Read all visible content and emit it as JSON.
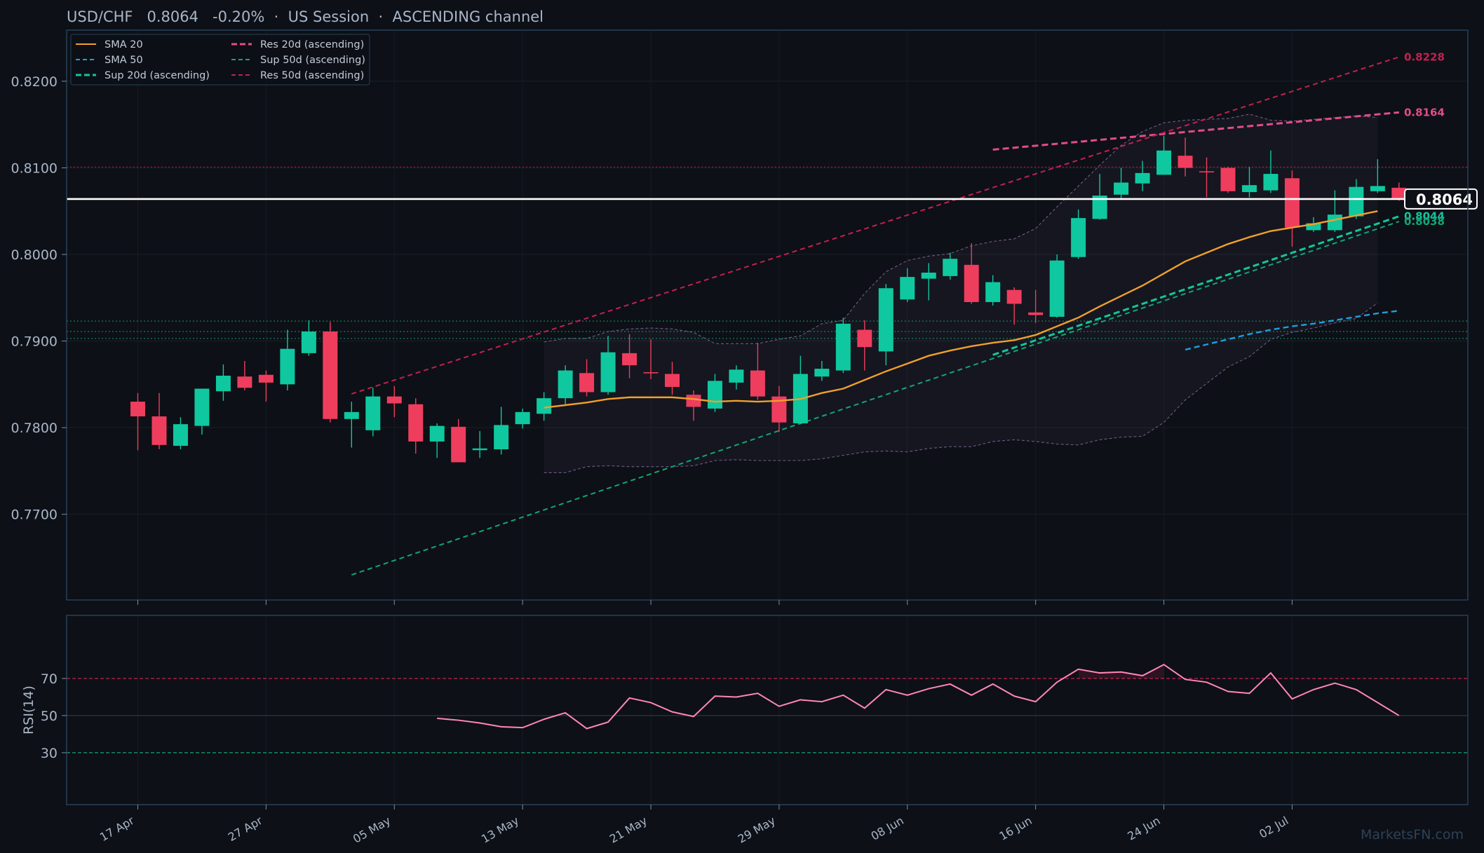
{
  "header": {
    "title": "USD/CHF   0.8064   -0.20%  ·  US Session  ·  ASCENDING channel"
  },
  "watermark": "MarketsFN.com",
  "colors": {
    "background": "#0d1016",
    "frame": "#26405a",
    "up": "#0fc8a0",
    "down": "#ef3d5e",
    "sma20": "#f0a02c",
    "sma50": "#1e9fe0",
    "sup20": "#11c79b",
    "sup50": "#14a574",
    "res20": "#e24c8a",
    "res50": "#c22151",
    "rsi": "#ff86b8",
    "last_price": "#ffffff"
  },
  "chart_data": [
    {
      "type": "candlestick",
      "title": "USD/CHF   0.8064   -0.20%  ·  US Session  ·  ASCENDING channel",
      "x_ticks": [
        "17 Apr",
        "27 Apr",
        "05 May",
        "13 May",
        "21 May",
        "29 May",
        "08 Jun",
        "16 Jun",
        "24 Jun",
        "02 Jul"
      ],
      "y_ticks": [
        "0.7700",
        "0.7800",
        "0.7900",
        "0.8000",
        "0.8100",
        "0.8200"
      ],
      "ylim": [
        0.7601,
        0.8259
      ],
      "grid": true,
      "legend": {
        "position": "top-left",
        "entries": [
          {
            "label": "SMA 20",
            "key": "sma20",
            "style": "solid"
          },
          {
            "label": "SMA 50",
            "key": "sma50",
            "style": "dashed"
          },
          {
            "label": "Sup 20d (ascending)",
            "key": "sup20",
            "style": "dashed-bold"
          },
          {
            "label": "Res 20d (ascending)",
            "key": "res20",
            "style": "dashed-bold"
          },
          {
            "label": "Sup 50d (ascending)",
            "key": "sup50",
            "style": "dashed"
          },
          {
            "label": "Res 50d (ascending)",
            "key": "res50",
            "style": "dashed"
          }
        ]
      },
      "candles": [
        {
          "o": 0.783,
          "h": 0.784,
          "l": 0.7774,
          "c": 0.7813
        },
        {
          "o": 0.7813,
          "h": 0.784,
          "l": 0.7775,
          "c": 0.778
        },
        {
          "o": 0.7779,
          "h": 0.7812,
          "l": 0.7775,
          "c": 0.7804
        },
        {
          "o": 0.7802,
          "h": 0.7845,
          "l": 0.7792,
          "c": 0.7845
        },
        {
          "o": 0.7842,
          "h": 0.7873,
          "l": 0.7831,
          "c": 0.786
        },
        {
          "o": 0.7859,
          "h": 0.7877,
          "l": 0.7843,
          "c": 0.7846
        },
        {
          "o": 0.7861,
          "h": 0.7866,
          "l": 0.783,
          "c": 0.7852
        },
        {
          "o": 0.785,
          "h": 0.7913,
          "l": 0.7843,
          "c": 0.7891
        },
        {
          "o": 0.7886,
          "h": 0.7924,
          "l": 0.7883,
          "c": 0.7911
        },
        {
          "o": 0.7911,
          "h": 0.7922,
          "l": 0.7806,
          "c": 0.781
        },
        {
          "o": 0.781,
          "h": 0.783,
          "l": 0.7777,
          "c": 0.7818
        },
        {
          "o": 0.7797,
          "h": 0.7846,
          "l": 0.779,
          "c": 0.7836
        },
        {
          "o": 0.7836,
          "h": 0.7848,
          "l": 0.7812,
          "c": 0.7828
        },
        {
          "o": 0.7827,
          "h": 0.7834,
          "l": 0.777,
          "c": 0.7784
        },
        {
          "o": 0.7784,
          "h": 0.7805,
          "l": 0.7765,
          "c": 0.7802
        },
        {
          "o": 0.7801,
          "h": 0.781,
          "l": 0.776,
          "c": 0.776
        },
        {
          "o": 0.7774,
          "h": 0.7796,
          "l": 0.7765,
          "c": 0.7776
        },
        {
          "o": 0.7775,
          "h": 0.7824,
          "l": 0.7769,
          "c": 0.7803
        },
        {
          "o": 0.7804,
          "h": 0.7822,
          "l": 0.7799,
          "c": 0.7818
        },
        {
          "o": 0.7816,
          "h": 0.7841,
          "l": 0.7808,
          "c": 0.7834
        },
        {
          "o": 0.7834,
          "h": 0.7872,
          "l": 0.7827,
          "c": 0.7866
        },
        {
          "o": 0.7863,
          "h": 0.7879,
          "l": 0.7836,
          "c": 0.7841
        },
        {
          "o": 0.7841,
          "h": 0.7906,
          "l": 0.7838,
          "c": 0.7887
        },
        {
          "o": 0.7886,
          "h": 0.7908,
          "l": 0.7857,
          "c": 0.7872
        },
        {
          "o": 0.7864,
          "h": 0.7902,
          "l": 0.7856,
          "c": 0.7863
        },
        {
          "o": 0.7862,
          "h": 0.7876,
          "l": 0.7838,
          "c": 0.7847
        },
        {
          "o": 0.7838,
          "h": 0.7843,
          "l": 0.7808,
          "c": 0.7824
        },
        {
          "o": 0.7822,
          "h": 0.7862,
          "l": 0.7818,
          "c": 0.7854
        },
        {
          "o": 0.7852,
          "h": 0.7872,
          "l": 0.7844,
          "c": 0.7867
        },
        {
          "o": 0.7866,
          "h": 0.7898,
          "l": 0.7832,
          "c": 0.7836
        },
        {
          "o": 0.7836,
          "h": 0.7848,
          "l": 0.7795,
          "c": 0.7806
        },
        {
          "o": 0.7805,
          "h": 0.7883,
          "l": 0.7804,
          "c": 0.7862
        },
        {
          "o": 0.7859,
          "h": 0.7877,
          "l": 0.7854,
          "c": 0.7868
        },
        {
          "o": 0.7866,
          "h": 0.7927,
          "l": 0.7863,
          "c": 0.792
        },
        {
          "o": 0.7913,
          "h": 0.7924,
          "l": 0.7866,
          "c": 0.7893
        },
        {
          "o": 0.7888,
          "h": 0.7966,
          "l": 0.7872,
          "c": 0.7961
        },
        {
          "o": 0.7948,
          "h": 0.7984,
          "l": 0.7945,
          "c": 0.7974
        },
        {
          "o": 0.7972,
          "h": 0.799,
          "l": 0.7947,
          "c": 0.7979
        },
        {
          "o": 0.7975,
          "h": 0.8002,
          "l": 0.7971,
          "c": 0.7995
        },
        {
          "o": 0.7988,
          "h": 0.8013,
          "l": 0.7943,
          "c": 0.7945
        },
        {
          "o": 0.7945,
          "h": 0.7976,
          "l": 0.7941,
          "c": 0.7968
        },
        {
          "o": 0.7959,
          "h": 0.7962,
          "l": 0.7919,
          "c": 0.7943
        },
        {
          "o": 0.7933,
          "h": 0.7959,
          "l": 0.7921,
          "c": 0.793
        },
        {
          "o": 0.7928,
          "h": 0.8,
          "l": 0.7927,
          "c": 0.7993
        },
        {
          "o": 0.7997,
          "h": 0.8052,
          "l": 0.7995,
          "c": 0.8042
        },
        {
          "o": 0.8041,
          "h": 0.8093,
          "l": 0.804,
          "c": 0.8068
        },
        {
          "o": 0.8069,
          "h": 0.81,
          "l": 0.8065,
          "c": 0.8083
        },
        {
          "o": 0.8082,
          "h": 0.8108,
          "l": 0.8073,
          "c": 0.8094
        },
        {
          "o": 0.8092,
          "h": 0.8137,
          "l": 0.8092,
          "c": 0.812
        },
        {
          "o": 0.8114,
          "h": 0.8135,
          "l": 0.809,
          "c": 0.81
        },
        {
          "o": 0.8096,
          "h": 0.8112,
          "l": 0.8066,
          "c": 0.8095
        },
        {
          "o": 0.81,
          "h": 0.8101,
          "l": 0.8071,
          "c": 0.8073
        },
        {
          "o": 0.8072,
          "h": 0.8101,
          "l": 0.8066,
          "c": 0.808
        },
        {
          "o": 0.8074,
          "h": 0.812,
          "l": 0.8071,
          "c": 0.8093
        },
        {
          "o": 0.8088,
          "h": 0.8097,
          "l": 0.8009,
          "c": 0.8031
        },
        {
          "o": 0.8028,
          "h": 0.8043,
          "l": 0.8026,
          "c": 0.8036
        },
        {
          "o": 0.8028,
          "h": 0.8074,
          "l": 0.8026,
          "c": 0.8046
        },
        {
          "o": 0.8044,
          "h": 0.8087,
          "l": 0.8041,
          "c": 0.8078
        },
        {
          "o": 0.8073,
          "h": 0.811,
          "l": 0.8071,
          "c": 0.8079
        },
        {
          "o": 0.8077,
          "h": 0.8083,
          "l": 0.8062,
          "c": 0.8064
        }
      ],
      "series": [
        {
          "key": "sma20",
          "label": "SMA 20",
          "start_index": 19,
          "values": [
            0.7823,
            0.7826,
            0.7829,
            0.7833,
            0.7835,
            0.7835,
            0.7835,
            0.7833,
            0.783,
            0.7831,
            0.783,
            0.7831,
            0.7833,
            0.784,
            0.7845,
            0.7855,
            0.7865,
            0.7874,
            0.7883,
            0.7889,
            0.7894,
            0.7898,
            0.7901,
            0.7907,
            0.7917,
            0.7927,
            0.794,
            0.7952,
            0.7964,
            0.7978,
            0.7992,
            0.8002,
            0.8012,
            0.802,
            0.8027,
            0.8031,
            0.8035,
            0.804,
            0.8045,
            0.805
          ]
        },
        {
          "key": "sma50",
          "label": "SMA 50",
          "start_index": 49,
          "values": [
            0.789,
            0.7896,
            0.7902,
            0.7908,
            0.7913,
            0.7917,
            0.792,
            0.7924,
            0.7928,
            0.7932,
            0.7935
          ]
        },
        {
          "key": "sup20",
          "label": "Sup 20d (ascending)",
          "from": {
            "i": 40,
            "v": 0.7884
          },
          "to": {
            "i": 59,
            "v": 0.8044
          }
        },
        {
          "key": "res20",
          "label": "Res 20d (ascending)",
          "from": {
            "i": 40,
            "v": 0.8121
          },
          "to": {
            "i": 59,
            "v": 0.8164
          }
        },
        {
          "key": "sup50",
          "label": "Sup 50d (ascending)",
          "from": {
            "i": 10,
            "v": 0.763
          },
          "to": {
            "i": 59,
            "v": 0.8038
          }
        },
        {
          "key": "res50",
          "label": "Res 50d (ascending)",
          "from": {
            "i": 10,
            "v": 0.7839
          },
          "to": {
            "i": 59,
            "v": 0.8228
          }
        }
      ],
      "bollinger": {
        "start_index": 19,
        "upper": [
          0.7899,
          0.7903,
          0.7903,
          0.7911,
          0.7914,
          0.7915,
          0.7914,
          0.791,
          0.7897,
          0.7897,
          0.7897,
          0.7902,
          0.7906,
          0.792,
          0.7924,
          0.7955,
          0.798,
          0.7993,
          0.7998,
          0.8001,
          0.801,
          0.8015,
          0.8018,
          0.803,
          0.8055,
          0.8079,
          0.8103,
          0.8126,
          0.8142,
          0.8152,
          0.8155,
          0.8156,
          0.8157,
          0.8162,
          0.8155,
          0.8154,
          0.8156,
          0.8158,
          0.816,
          0.8158
        ],
        "lower": [
          0.7748,
          0.7748,
          0.7755,
          0.7756,
          0.7755,
          0.7755,
          0.7755,
          0.7756,
          0.7762,
          0.7763,
          0.7762,
          0.7762,
          0.7762,
          0.7764,
          0.7768,
          0.7772,
          0.7773,
          0.7772,
          0.7776,
          0.7778,
          0.7778,
          0.7784,
          0.7786,
          0.7784,
          0.7781,
          0.778,
          0.7786,
          0.7789,
          0.779,
          0.7806,
          0.7832,
          0.7851,
          0.787,
          0.7882,
          0.7902,
          0.791,
          0.7915,
          0.7921,
          0.7926,
          0.7944
        ]
      },
      "horizontal_levels": [
        {
          "value": 0.8101,
          "color": "#c22151",
          "style": "dotted"
        },
        {
          "value": 0.7923,
          "color": "#14a574",
          "style": "dotted"
        },
        {
          "value": 0.7911,
          "color": "#14a574",
          "style": "dotted"
        },
        {
          "value": 0.7903,
          "color": "#14a574",
          "style": "dotted"
        }
      ],
      "last_price": {
        "value": 0.8064,
        "label": "0.8064"
      },
      "level_labels": [
        {
          "value": 0.8228,
          "label": "0.8228",
          "key": "res50"
        },
        {
          "value": 0.8164,
          "label": "0.8164",
          "key": "res20"
        },
        {
          "value": 0.8044,
          "label": "0.8044",
          "key": "sup20"
        },
        {
          "value": 0.8038,
          "label": "0.8038",
          "key": "sup50"
        }
      ]
    },
    {
      "type": "line",
      "ylabel": "RSI(14)",
      "y_ticks": [
        "30",
        "50",
        "70"
      ],
      "ylim": [
        2,
        104
      ],
      "reference_lines": [
        {
          "value": 70,
          "color": "#c22151",
          "style": "dashed"
        },
        {
          "value": 50,
          "color": "#2a3442",
          "style": "solid"
        },
        {
          "value": 30,
          "color": "#14a574",
          "style": "dashed"
        }
      ],
      "series": [
        {
          "name": "RSI(14)",
          "start_index": 14,
          "values": [
            48.5,
            47.5,
            46.0,
            44.0,
            43.5,
            48.0,
            51.5,
            43.0,
            46.5,
            59.5,
            57.0,
            52.0,
            49.5,
            60.5,
            60.0,
            62.0,
            55.0,
            58.5,
            57.5,
            61.0,
            54.0,
            64.0,
            61.0,
            64.5,
            67.0,
            61.0,
            67.0,
            60.5,
            57.5,
            68.0,
            75.0,
            73.0,
            73.5,
            71.5,
            77.5,
            69.5,
            68.0,
            63.0,
            62.0,
            73.0,
            59.0,
            64.0,
            67.5,
            64.0,
            57.0,
            50.0
          ]
        }
      ]
    }
  ]
}
